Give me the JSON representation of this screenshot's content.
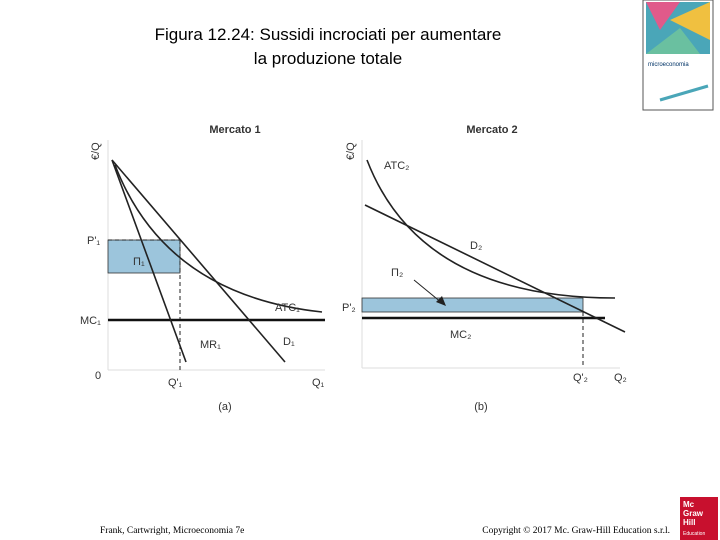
{
  "header": {
    "title_lines": [
      "Figura 12.24: Sussidi incrociati per aumentare",
      "la produzione totale"
    ]
  },
  "book_cover": {
    "title": "microeconomia"
  },
  "panel_a": {
    "title": "Mercato 1",
    "y_axis": "€/Q",
    "price": "P'₁",
    "profit": "Π₁",
    "atc": "ATC₁",
    "mc": "MC₁",
    "mr": "MR₁",
    "demand": "D₁",
    "origin": "0",
    "quantity": "Q'₁",
    "x_axis": "Q₁",
    "caption": "(a)"
  },
  "panel_b": {
    "title": "Mercato 2",
    "y_axis": "€/Q",
    "atc": "ATC₂",
    "demand": "D₂",
    "profit": "Π₂",
    "price": "P'₂",
    "mc": "MC₂",
    "quantity": "Q'₂",
    "x_axis": "Q₂",
    "caption": "(b)"
  },
  "footer": {
    "left": "Frank, Cartwright, Microeconomia 7e",
    "right": "Copyright © 2017 Mc. Graw-Hill Education s.r.l."
  },
  "logo": {
    "lines": [
      "Mc",
      "Graw",
      "Hill",
      "Education"
    ]
  }
}
